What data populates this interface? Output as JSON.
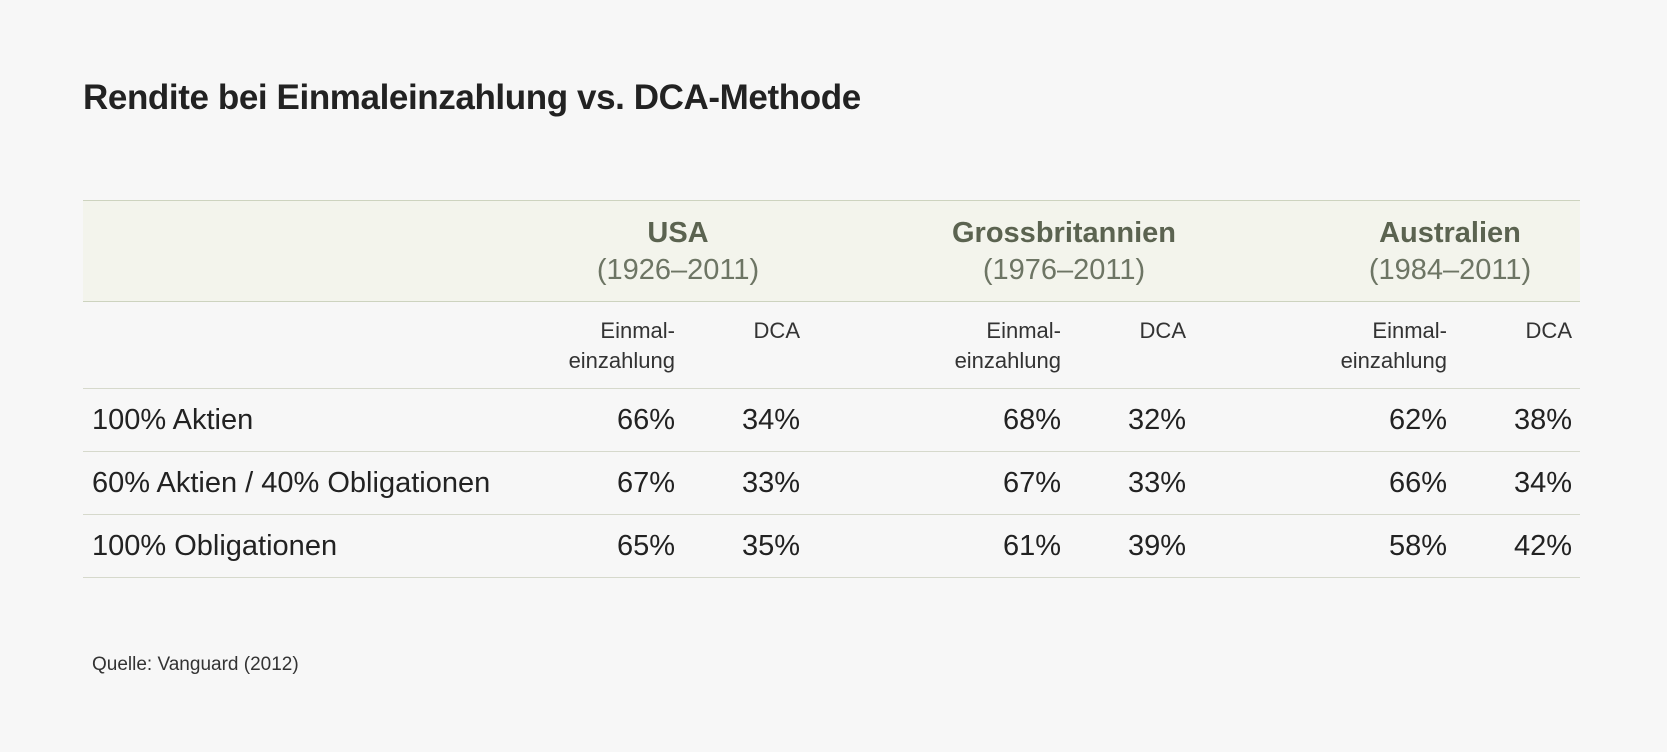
{
  "title": "Rendite bei Einmaleinzahlung vs. DCA-Methode",
  "source": "Quelle: Vanguard (2012)",
  "chart_data": {
    "type": "table",
    "title": "Rendite bei Einmaleinzahlung vs. DCA-Methode",
    "regions": [
      {
        "name": "USA",
        "period": "(1926–2011)"
      },
      {
        "name": "Grossbritannien",
        "period": "(1976–2011)"
      },
      {
        "name": "Australien",
        "period": "(1984–2011)"
      }
    ],
    "subheaders": {
      "lump_line1": "Einmal-",
      "lump_line2": "einzahlung",
      "dca": "DCA"
    },
    "rows": [
      {
        "label": "100% Aktien",
        "values": [
          "66%",
          "34%",
          "68%",
          "32%",
          "62%",
          "38%"
        ]
      },
      {
        "label": "60% Aktien / 40% Obligationen",
        "values": [
          "67%",
          "33%",
          "67%",
          "33%",
          "66%",
          "34%"
        ]
      },
      {
        "label": "100% Obligationen",
        "values": [
          "65%",
          "35%",
          "61%",
          "39%",
          "58%",
          "42%"
        ]
      }
    ],
    "source": "Quelle: Vanguard (2012)"
  }
}
